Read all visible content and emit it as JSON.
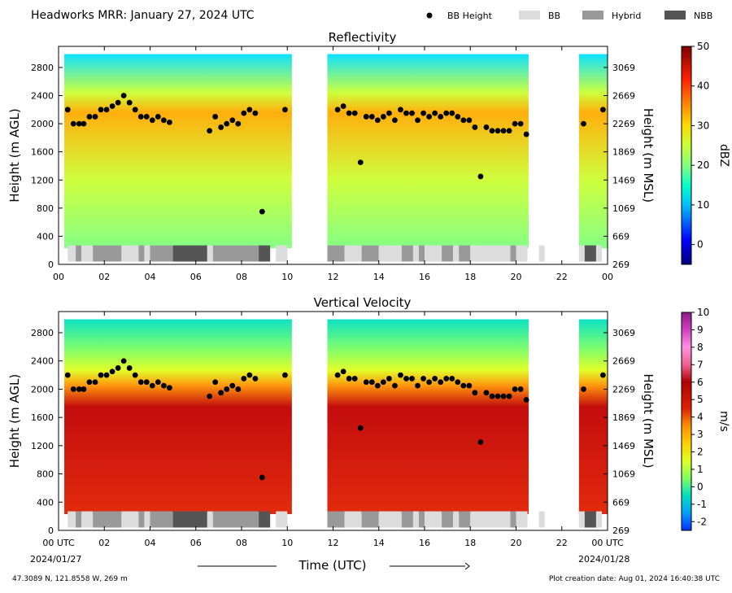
{
  "header": {
    "title": "Headworks MRR:  January 27, 2024 UTC",
    "legend": [
      {
        "label": "BB Height",
        "kind": "dot",
        "color": "#000000"
      },
      {
        "label": "BB",
        "kind": "box",
        "color": "#dcdcdc"
      },
      {
        "label": "Hybrid",
        "kind": "box",
        "color": "#999999"
      },
      {
        "label": "NBB",
        "kind": "box",
        "color": "#555555"
      }
    ]
  },
  "footer": {
    "location": "47.3089 N, 121.8558 W, 269 m",
    "creation": "Plot creation date: Aug 01, 2024 16:40:38 UTC",
    "xlabel": "Time (UTC)",
    "start_date": "2024/01/27",
    "end_date": "2024/01/28"
  },
  "chart_data": [
    {
      "type": "heatmap",
      "title": "Reflectivity",
      "ylabel": "Height (m AGL)",
      "ylabel_right": "Height (m MSL)",
      "ylim": [
        0,
        3100
      ],
      "xlim": [
        0,
        24
      ],
      "yticks": [
        0,
        400,
        800,
        1200,
        1600,
        2000,
        2400,
        2800
      ],
      "yticks_right": [
        "269",
        "669",
        "1069",
        "1469",
        "1869",
        "2269",
        "2669",
        "3069"
      ],
      "xticks": [
        "00",
        "02",
        "04",
        "06",
        "08",
        "10",
        "12",
        "14",
        "16",
        "18",
        "20",
        "22",
        "00"
      ],
      "colorbar": {
        "label": "dBZ",
        "min": -5,
        "max": 50,
        "ticks": [
          0,
          10,
          20,
          30,
          40,
          50
        ]
      },
      "bb_height": {
        "x": [
          0.4,
          0.65,
          0.9,
          1.1,
          1.35,
          1.6,
          1.85,
          2.1,
          2.35,
          2.6,
          2.85,
          3.1,
          3.35,
          3.6,
          3.85,
          4.1,
          4.35,
          4.6,
          4.85,
          6.6,
          6.85,
          7.1,
          7.35,
          7.6,
          7.85,
          8.1,
          8.35,
          8.6,
          8.9,
          9.9,
          12.2,
          12.45,
          12.7,
          12.95,
          13.2,
          13.45,
          13.7,
          13.95,
          14.2,
          14.45,
          14.7,
          14.95,
          15.2,
          15.45,
          15.7,
          15.95,
          16.2,
          16.45,
          16.7,
          16.95,
          17.2,
          17.45,
          17.7,
          17.95,
          18.2,
          18.45,
          18.7,
          18.95,
          19.2,
          19.45,
          19.7,
          19.95,
          20.2,
          20.45,
          22.95,
          23.8
        ],
        "y": [
          2200,
          2000,
          2000,
          2000,
          2100,
          2100,
          2200,
          2200,
          2250,
          2300,
          2400,
          2300,
          2200,
          2100,
          2100,
          2050,
          2100,
          2050,
          2020,
          1900,
          2100,
          1950,
          2000,
          2050,
          2000,
          2150,
          2200,
          2150,
          750,
          2200,
          2200,
          2250,
          2150,
          2150,
          1450,
          2100,
          2100,
          2050,
          2100,
          2150,
          2050,
          2200,
          2150,
          2150,
          2050,
          2150,
          2100,
          2150,
          2100,
          2150,
          2150,
          2100,
          2050,
          2050,
          1950,
          1250,
          1950,
          1900,
          1900,
          1900,
          1900,
          2000,
          2000,
          1850,
          2000,
          2200
        ]
      },
      "bb_type": [
        {
          "start": 0.4,
          "end": 0.75,
          "type": "BB"
        },
        {
          "start": 0.75,
          "end": 1.0,
          "type": "Hybrid"
        },
        {
          "start": 1.0,
          "end": 1.5,
          "type": "BB"
        },
        {
          "start": 1.5,
          "end": 2.75,
          "type": "Hybrid"
        },
        {
          "start": 2.75,
          "end": 3.5,
          "type": "BB"
        },
        {
          "start": 3.5,
          "end": 3.75,
          "type": "Hybrid"
        },
        {
          "start": 3.75,
          "end": 4.0,
          "type": "BB"
        },
        {
          "start": 4.0,
          "end": 5.0,
          "type": "Hybrid"
        },
        {
          "start": 5.0,
          "end": 6.5,
          "type": "NBB"
        },
        {
          "start": 6.5,
          "end": 6.75,
          "type": "BB"
        },
        {
          "start": 6.75,
          "end": 8.75,
          "type": "Hybrid"
        },
        {
          "start": 8.75,
          "end": 9.25,
          "type": "NBB"
        },
        {
          "start": 9.5,
          "end": 10.0,
          "type": "BB"
        },
        {
          "start": 11.75,
          "end": 12.5,
          "type": "Hybrid"
        },
        {
          "start": 12.5,
          "end": 13.25,
          "type": "BB"
        },
        {
          "start": 13.25,
          "end": 14.0,
          "type": "Hybrid"
        },
        {
          "start": 14.0,
          "end": 15.0,
          "type": "BB"
        },
        {
          "start": 15.0,
          "end": 15.5,
          "type": "Hybrid"
        },
        {
          "start": 15.5,
          "end": 15.75,
          "type": "BB"
        },
        {
          "start": 15.75,
          "end": 16.0,
          "type": "Hybrid"
        },
        {
          "start": 16.0,
          "end": 16.75,
          "type": "BB"
        },
        {
          "start": 16.75,
          "end": 17.25,
          "type": "Hybrid"
        },
        {
          "start": 17.25,
          "end": 17.5,
          "type": "BB"
        },
        {
          "start": 17.5,
          "end": 18.0,
          "type": "Hybrid"
        },
        {
          "start": 18.0,
          "end": 19.75,
          "type": "BB"
        },
        {
          "start": 19.75,
          "end": 20.0,
          "type": "Hybrid"
        },
        {
          "start": 20.0,
          "end": 20.5,
          "type": "BB"
        },
        {
          "start": 21.0,
          "end": 21.25,
          "type": "BB"
        },
        {
          "start": 22.75,
          "end": 23.0,
          "type": "BB"
        },
        {
          "start": 23.0,
          "end": 23.5,
          "type": "NBB"
        },
        {
          "start": 23.5,
          "end": 23.75,
          "type": "BB"
        }
      ]
    },
    {
      "type": "heatmap",
      "title": "Vertical Velocity",
      "ylabel": "Height (m AGL)",
      "ylabel_right": "Height (m MSL)",
      "ylim": [
        0,
        3100
      ],
      "xlim": [
        0,
        24
      ],
      "yticks": [
        0,
        400,
        800,
        1200,
        1600,
        2000,
        2400,
        2800
      ],
      "yticks_right": [
        "269",
        "669",
        "1069",
        "1469",
        "1869",
        "2269",
        "2669",
        "3069"
      ],
      "xticks": [
        "00 UTC",
        "02",
        "04",
        "06",
        "08",
        "10",
        "12",
        "14",
        "16",
        "18",
        "20",
        "22",
        "00 UTC"
      ],
      "colorbar": {
        "label": "m/s",
        "min": -2.5,
        "max": 10,
        "ticks": [
          -2,
          -1,
          0,
          1,
          2,
          3,
          4,
          5,
          6,
          7,
          8,
          9,
          10
        ]
      },
      "bb_height": {
        "x": [
          0.4,
          0.65,
          0.9,
          1.1,
          1.35,
          1.6,
          1.85,
          2.1,
          2.35,
          2.6,
          2.85,
          3.1,
          3.35,
          3.6,
          3.85,
          4.1,
          4.35,
          4.6,
          4.85,
          6.6,
          6.85,
          7.1,
          7.35,
          7.6,
          7.85,
          8.1,
          8.35,
          8.6,
          8.9,
          9.9,
          12.2,
          12.45,
          12.7,
          12.95,
          13.2,
          13.45,
          13.7,
          13.95,
          14.2,
          14.45,
          14.7,
          14.95,
          15.2,
          15.45,
          15.7,
          15.95,
          16.2,
          16.45,
          16.7,
          16.95,
          17.2,
          17.45,
          17.7,
          17.95,
          18.2,
          18.45,
          18.7,
          18.95,
          19.2,
          19.45,
          19.7,
          19.95,
          20.2,
          20.45,
          22.95,
          23.8
        ],
        "y": [
          2200,
          2000,
          2000,
          2000,
          2100,
          2100,
          2200,
          2200,
          2250,
          2300,
          2400,
          2300,
          2200,
          2100,
          2100,
          2050,
          2100,
          2050,
          2020,
          1900,
          2100,
          1950,
          2000,
          2050,
          2000,
          2150,
          2200,
          2150,
          750,
          2200,
          2200,
          2250,
          2150,
          2150,
          1450,
          2100,
          2100,
          2050,
          2100,
          2150,
          2050,
          2200,
          2150,
          2150,
          2050,
          2150,
          2100,
          2150,
          2100,
          2150,
          2150,
          2100,
          2050,
          2050,
          1950,
          1250,
          1950,
          1900,
          1900,
          1900,
          1900,
          2000,
          2000,
          1850,
          2000,
          2200
        ]
      },
      "bb_type": [
        {
          "start": 0.4,
          "end": 0.75,
          "type": "BB"
        },
        {
          "start": 0.75,
          "end": 1.0,
          "type": "Hybrid"
        },
        {
          "start": 1.0,
          "end": 1.5,
          "type": "BB"
        },
        {
          "start": 1.5,
          "end": 2.75,
          "type": "Hybrid"
        },
        {
          "start": 2.75,
          "end": 3.5,
          "type": "BB"
        },
        {
          "start": 3.5,
          "end": 3.75,
          "type": "Hybrid"
        },
        {
          "start": 3.75,
          "end": 4.0,
          "type": "BB"
        },
        {
          "start": 4.0,
          "end": 5.0,
          "type": "Hybrid"
        },
        {
          "start": 5.0,
          "end": 6.5,
          "type": "NBB"
        },
        {
          "start": 6.5,
          "end": 6.75,
          "type": "BB"
        },
        {
          "start": 6.75,
          "end": 8.75,
          "type": "Hybrid"
        },
        {
          "start": 8.75,
          "end": 9.25,
          "type": "NBB"
        },
        {
          "start": 9.5,
          "end": 10.0,
          "type": "BB"
        },
        {
          "start": 11.75,
          "end": 12.5,
          "type": "Hybrid"
        },
        {
          "start": 12.5,
          "end": 13.25,
          "type": "BB"
        },
        {
          "start": 13.25,
          "end": 14.0,
          "type": "Hybrid"
        },
        {
          "start": 14.0,
          "end": 15.0,
          "type": "BB"
        },
        {
          "start": 15.0,
          "end": 15.5,
          "type": "Hybrid"
        },
        {
          "start": 15.5,
          "end": 15.75,
          "type": "BB"
        },
        {
          "start": 15.75,
          "end": 16.0,
          "type": "Hybrid"
        },
        {
          "start": 16.0,
          "end": 16.75,
          "type": "BB"
        },
        {
          "start": 16.75,
          "end": 17.25,
          "type": "Hybrid"
        },
        {
          "start": 17.25,
          "end": 17.5,
          "type": "BB"
        },
        {
          "start": 17.5,
          "end": 18.0,
          "type": "Hybrid"
        },
        {
          "start": 18.0,
          "end": 19.75,
          "type": "BB"
        },
        {
          "start": 19.75,
          "end": 20.0,
          "type": "Hybrid"
        },
        {
          "start": 20.0,
          "end": 20.5,
          "type": "BB"
        },
        {
          "start": 21.0,
          "end": 21.25,
          "type": "BB"
        },
        {
          "start": 22.75,
          "end": 23.0,
          "type": "BB"
        },
        {
          "start": 23.0,
          "end": 23.5,
          "type": "NBB"
        },
        {
          "start": 23.5,
          "end": 23.75,
          "type": "BB"
        }
      ]
    }
  ]
}
